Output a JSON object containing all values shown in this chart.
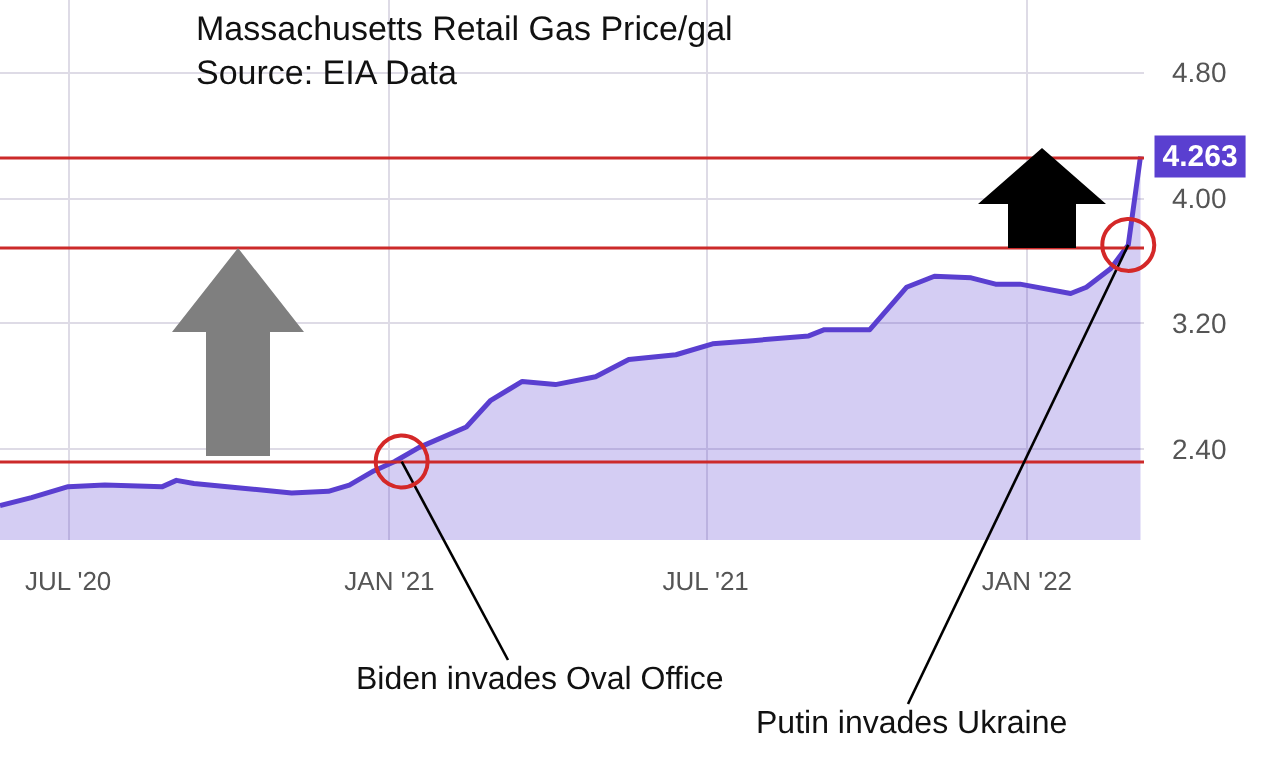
{
  "chart_data": {
    "type": "area",
    "title": "Massachusetts Retail Gas Price/gal",
    "x": [
      "2020-05-23",
      "2020-06-10",
      "2020-07-01",
      "2020-07-22",
      "2020-08-24",
      "2020-09-01",
      "2020-09-11",
      "2020-10-09",
      "2020-11-06",
      "2020-11-27",
      "2020-12-09",
      "2020-12-23",
      "2021-01-04",
      "2021-01-18",
      "2021-02-14",
      "2021-02-28",
      "2021-03-18",
      "2021-04-06",
      "2021-04-29",
      "2021-05-18",
      "2021-06-14",
      "2021-07-05",
      "2021-07-28",
      "2021-08-29",
      "2021-09-07",
      "2021-10-03",
      "2021-10-24",
      "2021-11-09",
      "2021-11-30",
      "2021-12-14",
      "2021-12-28",
      "2022-01-26",
      "2022-02-04",
      "2022-02-18",
      "2022-02-28",
      "2022-03-07"
    ],
    "series": [
      {
        "color": "#5a3fd0",
        "values": [
          2.04,
          2.09,
          2.16,
          2.17,
          2.16,
          2.2,
          2.18,
          2.15,
          2.12,
          2.13,
          2.17,
          2.26,
          2.32,
          2.41,
          2.54,
          2.71,
          2.83,
          2.81,
          2.86,
          2.97,
          3.0,
          3.07,
          3.09,
          3.12,
          3.16,
          3.16,
          3.43,
          3.5,
          3.49,
          3.45,
          3.45,
          3.39,
          3.43,
          3.55,
          3.7,
          4.263
        ],
        "value_labels": [
          null,
          null,
          null,
          null,
          null,
          null,
          null,
          null,
          null,
          null,
          null,
          null,
          null,
          null,
          null,
          null,
          null,
          null,
          null,
          null,
          null,
          null,
          null,
          null,
          null,
          null,
          null,
          null,
          null,
          null,
          null,
          null,
          null,
          null,
          null,
          "4.263"
        ]
      }
    ],
    "xlim": [
      "2020-05-23",
      "2022-03-09"
    ],
    "xticks": [
      {
        "value": "2020-07-01",
        "label": "JUL '20"
      },
      {
        "value": "2021-01-01",
        "label": "JAN '21"
      },
      {
        "value": "2021-07-01",
        "label": "JUL '21"
      },
      {
        "value": "2022-01-01",
        "label": "JAN '22"
      }
    ],
    "ylim": [
      1.82,
      5.26
    ],
    "yticks": [
      {
        "value": 2.4,
        "label": "2.40"
      },
      {
        "value": 3.2,
        "label": "3.20"
      },
      {
        "value": 4.0,
        "label": "4.00"
      },
      {
        "value": 4.8,
        "label": "4.80"
      }
    ],
    "grid": true,
    "marker": "none",
    "ref_lines": [
      {
        "axis": "y",
        "value": 4.263,
        "color": "#cc2a2a"
      },
      {
        "axis": "y",
        "value": 3.68,
        "color": "#cc2a2a"
      },
      {
        "axis": "y",
        "value": 2.32,
        "color": "#cc2a2a"
      }
    ],
    "annotations": [
      "Source: EIA Data",
      {
        "text": "Biden invades Oval Office",
        "x": "2021-01-08",
        "y": 2.32
      },
      {
        "text": "Putin invades Ukraine",
        "x": "2022-02-28",
        "y": 3.7
      }
    ]
  }
}
